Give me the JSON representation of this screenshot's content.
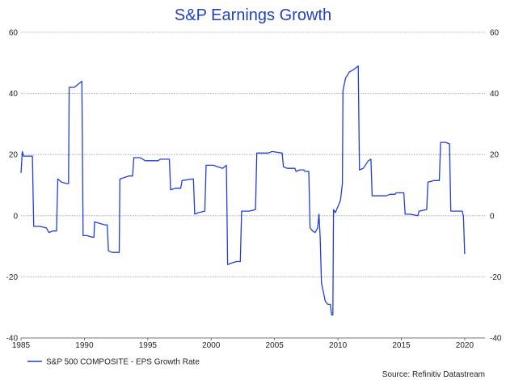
{
  "chart_data": {
    "type": "line",
    "title": "S&P Earnings Growth",
    "source": "Source: Refinitiv Datastream",
    "xlabel": "",
    "ylabel": "",
    "xlim": [
      1985,
      2021.6
    ],
    "ylim": [
      -40,
      60
    ],
    "x_ticks": [
      "1985",
      "1990",
      "1995",
      "2000",
      "2005",
      "2010",
      "2015",
      "2020"
    ],
    "y_ticks": [
      "60",
      "40",
      "20",
      "0",
      "-20",
      "-40"
    ],
    "grid": true,
    "legend_position": "bottom-left",
    "colors": {
      "series": "#1f3fdc",
      "title": "#1f3fc4"
    },
    "series": [
      {
        "name": "S&P 500 COMPOSITE - EPS Growth Rate",
        "points": [
          [
            1985.0,
            14
          ],
          [
            1985.1,
            21
          ],
          [
            1985.2,
            19.5
          ],
          [
            1985.5,
            19.5
          ],
          [
            1985.9,
            19.5
          ],
          [
            1986.0,
            -3.5
          ],
          [
            1986.5,
            -3.5
          ],
          [
            1987.0,
            -4
          ],
          [
            1987.2,
            -5.5
          ],
          [
            1987.5,
            -5
          ],
          [
            1987.8,
            -5
          ],
          [
            1987.9,
            12
          ],
          [
            1988.2,
            11
          ],
          [
            1988.6,
            10.5
          ],
          [
            1988.75,
            10.5
          ],
          [
            1988.8,
            42
          ],
          [
            1989.2,
            42
          ],
          [
            1989.5,
            43
          ],
          [
            1989.8,
            44
          ],
          [
            1989.9,
            -6.5
          ],
          [
            1990.2,
            -6.5
          ],
          [
            1990.6,
            -7
          ],
          [
            1990.75,
            -7
          ],
          [
            1990.8,
            -2
          ],
          [
            1991.2,
            -2.5
          ],
          [
            1991.6,
            -3
          ],
          [
            1991.8,
            -3
          ],
          [
            1991.9,
            -11.5
          ],
          [
            1992.2,
            -12
          ],
          [
            1992.75,
            -12
          ],
          [
            1992.8,
            12
          ],
          [
            1993.5,
            13
          ],
          [
            1993.8,
            13
          ],
          [
            1993.9,
            19
          ],
          [
            1994.4,
            19
          ],
          [
            1994.8,
            18
          ],
          [
            1995.0,
            18
          ],
          [
            1995.8,
            18
          ],
          [
            1996.0,
            18.5
          ],
          [
            1996.7,
            18.5
          ],
          [
            1996.8,
            8.5
          ],
          [
            1997.2,
            9
          ],
          [
            1997.6,
            9
          ],
          [
            1997.7,
            11.5
          ],
          [
            1998.5,
            12
          ],
          [
            1998.6,
            12
          ],
          [
            1998.7,
            0.5
          ],
          [
            1999.0,
            1
          ],
          [
            1999.5,
            1.5
          ],
          [
            1999.6,
            16.5
          ],
          [
            2000.2,
            16.5
          ],
          [
            2000.5,
            16
          ],
          [
            2000.9,
            15.5
          ],
          [
            2001.2,
            16.5
          ],
          [
            2001.3,
            -16
          ],
          [
            2001.6,
            -15.5
          ],
          [
            2002.0,
            -15
          ],
          [
            2002.3,
            -15
          ],
          [
            2002.4,
            1.5
          ],
          [
            2003.0,
            1.5
          ],
          [
            2003.5,
            2
          ],
          [
            2003.6,
            20.5
          ],
          [
            2004.0,
            20.5
          ],
          [
            2004.5,
            20.5
          ],
          [
            2004.8,
            21
          ],
          [
            2005.6,
            20.5
          ],
          [
            2005.7,
            16
          ],
          [
            2006.0,
            15.5
          ],
          [
            2006.6,
            15.5
          ],
          [
            2006.7,
            14.5
          ],
          [
            2007.0,
            15
          ],
          [
            2007.3,
            15
          ],
          [
            2007.4,
            14.5
          ],
          [
            2007.7,
            14.5
          ],
          [
            2007.8,
            -4
          ],
          [
            2008.0,
            -5
          ],
          [
            2008.2,
            -5.5
          ],
          [
            2008.4,
            -4
          ],
          [
            2008.5,
            0.5
          ],
          [
            2008.6,
            -7
          ],
          [
            2008.7,
            -22
          ],
          [
            2008.8,
            -24
          ],
          [
            2009.0,
            -28
          ],
          [
            2009.2,
            -29
          ],
          [
            2009.4,
            -29
          ],
          [
            2009.5,
            -32.5
          ],
          [
            2009.6,
            -32.5
          ],
          [
            2009.65,
            2
          ],
          [
            2009.8,
            1
          ],
          [
            2010.0,
            3
          ],
          [
            2010.2,
            5
          ],
          [
            2010.35,
            10.5
          ],
          [
            2010.4,
            41
          ],
          [
            2010.6,
            45
          ],
          [
            2010.9,
            47
          ],
          [
            2011.3,
            48
          ],
          [
            2011.6,
            49
          ],
          [
            2011.7,
            15
          ],
          [
            2012.0,
            15.5
          ],
          [
            2012.4,
            18
          ],
          [
            2012.6,
            18.5
          ],
          [
            2012.7,
            6.5
          ],
          [
            2013.2,
            6.5
          ],
          [
            2013.8,
            6.5
          ],
          [
            2014.1,
            7
          ],
          [
            2014.5,
            7
          ],
          [
            2014.6,
            7.5
          ],
          [
            2015.2,
            7.5
          ],
          [
            2015.3,
            0.5
          ],
          [
            2015.7,
            0.5
          ],
          [
            2016.3,
            0
          ],
          [
            2016.4,
            1.5
          ],
          [
            2017.0,
            2
          ],
          [
            2017.1,
            11
          ],
          [
            2017.6,
            11.5
          ],
          [
            2018.0,
            11.5
          ],
          [
            2018.1,
            24
          ],
          [
            2018.5,
            24
          ],
          [
            2018.8,
            23.5
          ],
          [
            2018.9,
            1.5
          ],
          [
            2019.5,
            1.5
          ],
          [
            2019.8,
            1.5
          ],
          [
            2019.9,
            0
          ],
          [
            2020.0,
            -12.5
          ]
        ]
      }
    ]
  }
}
